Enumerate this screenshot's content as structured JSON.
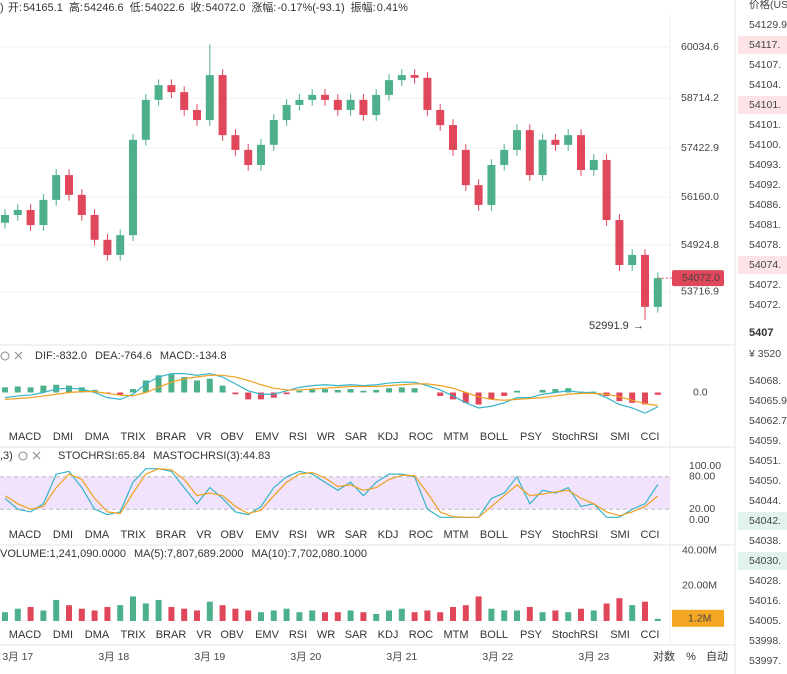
{
  "ohlc_bar": {
    "prefix": ")",
    "items": [
      {
        "label": "开:",
        "value": "54165.1"
      },
      {
        "label": "高:",
        "value": "54246.6"
      },
      {
        "label": "低:",
        "value": "54022.6"
      },
      {
        "label": "收:",
        "value": "54072.0"
      },
      {
        "label": "涨幅:",
        "value": "-0.17%(-93.1)"
      },
      {
        "label": "振幅:",
        "value": "0.41%"
      }
    ]
  },
  "chart_data": {
    "type": "candlestick",
    "open": [
      55500,
      55700,
      55830,
      55440,
      56090,
      56730,
      56220,
      55700,
      55060,
      54670,
      55180,
      57640,
      58670,
      59050,
      58870,
      58410,
      58150,
      59310,
      57760,
      57380,
      56990,
      57510,
      58150,
      58540,
      58670,
      58800,
      58670,
      58410,
      58670,
      58280,
      58800,
      59180,
      59310,
      59240,
      58410,
      58020,
      57380,
      56470,
      55960,
      56990,
      57380,
      57890,
      56730,
      57640,
      57510,
      57760,
      56860,
      57120,
      55570,
      54410,
      54670,
      53330
    ],
    "high": [
      55850,
      55980,
      55980,
      56240,
      56880,
      56880,
      56370,
      55850,
      55210,
      55330,
      57790,
      58820,
      59200,
      59200,
      59020,
      58560,
      60100,
      59460,
      57910,
      57530,
      57660,
      58300,
      58690,
      58820,
      58950,
      58950,
      58820,
      58820,
      58820,
      58950,
      59330,
      59460,
      59460,
      59390,
      58560,
      58170,
      57530,
      56620,
      57140,
      57530,
      58040,
      58040,
      57790,
      57790,
      57910,
      57910,
      57270,
      57270,
      55720,
      54820,
      54820,
      54222
    ],
    "low": [
      55350,
      55550,
      55290,
      55290,
      55940,
      56070,
      55550,
      54910,
      54520,
      54520,
      55030,
      57490,
      58520,
      58720,
      58260,
      58000,
      58000,
      57610,
      57230,
      56840,
      56840,
      57360,
      58000,
      58390,
      58520,
      58520,
      58260,
      58260,
      58130,
      58130,
      58650,
      59030,
      59090,
      58260,
      57870,
      57230,
      56320,
      55810,
      55810,
      56840,
      57230,
      56580,
      56580,
      57360,
      57360,
      56710,
      56710,
      55420,
      54260,
      54260,
      52991.9,
      53180
    ],
    "close": [
      55700,
      55830,
      55440,
      56090,
      56730,
      56220,
      55700,
      55060,
      54670,
      55180,
      57640,
      58670,
      59050,
      58870,
      58410,
      58150,
      59310,
      57760,
      57380,
      56990,
      57510,
      58150,
      58540,
      58670,
      58800,
      58670,
      58410,
      58670,
      58280,
      58800,
      59180,
      59310,
      59240,
      58410,
      58020,
      57380,
      56470,
      55960,
      56990,
      57380,
      57890,
      56730,
      57640,
      57510,
      57760,
      56860,
      57120,
      55570,
      54410,
      54670,
      53330,
      54072
    ],
    "ylim": [
      52475,
      61247
    ],
    "yticks": [
      60034.6,
      58714.2,
      57422.9,
      {
        "value": 56160,
        "label": "56160.0"
      },
      54924.8,
      53716.9
    ],
    "last_price": {
      "value": 54072,
      "label": "54072.0"
    },
    "low_marker": {
      "value": 52991.9,
      "label": "52991.9"
    },
    "up_color": "#4cb08b",
    "down_color": "#e0475b",
    "dates": [
      "3月 17",
      "3月 18",
      "3月 19",
      "3月 20",
      "3月 21",
      "3月 22",
      "3月 23"
    ],
    "date_index": [
      1,
      8.5,
      16,
      23.5,
      31,
      38.5,
      46
    ],
    "scale_buttons": [
      "对数",
      "%",
      "自动"
    ]
  },
  "tabs": [
    "MACD",
    "DMI",
    "DMA",
    "TRIX",
    "BRAR",
    "VR",
    "OBV",
    "EMV",
    "RSI",
    "WR",
    "SAR",
    "KDJ",
    "ROC",
    "MTM",
    "BOLL",
    "PSY",
    "StochRSI",
    "SMI",
    "CCI"
  ],
  "macd": {
    "header": [
      "DIF:-832.0",
      "DEA:-764.6",
      "MACD:-134.8"
    ],
    "ylim": [
      -1600,
      1600
    ],
    "yticks": [
      {
        "value": 0,
        "label": "0.0"
      }
    ],
    "hist": [
      300,
      350,
      300,
      400,
      450,
      400,
      300,
      150,
      -50,
      -150,
      200,
      700,
      1000,
      1050,
      900,
      700,
      800,
      400,
      -100,
      -400,
      -400,
      -300,
      -100,
      100,
      200,
      200,
      150,
      200,
      100,
      150,
      250,
      300,
      250,
      0,
      -200,
      -400,
      -600,
      -700,
      -400,
      -200,
      100,
      0,
      150,
      200,
      250,
      50,
      50,
      -200,
      -500,
      -600,
      -700,
      -134.8
    ],
    "dif": [
      -300,
      -200,
      -150,
      0,
      200,
      250,
      200,
      0,
      -300,
      -400,
      -100,
      500,
      900,
      1100,
      1100,
      1000,
      1100,
      900,
      500,
      100,
      -100,
      -100,
      100,
      300,
      400,
      450,
      400,
      450,
      400,
      450,
      550,
      600,
      600,
      400,
      150,
      -200,
      -600,
      -900,
      -800,
      -600,
      -300,
      -300,
      -100,
      0,
      100,
      0,
      0,
      -300,
      -700,
      -900,
      -1200,
      -832
    ],
    "dea": [
      -400,
      -350,
      -300,
      -200,
      -100,
      0,
      50,
      50,
      -50,
      -150,
      -200,
      0,
      300,
      600,
      800,
      900,
      1000,
      1000,
      900,
      700,
      450,
      250,
      150,
      150,
      200,
      250,
      300,
      350,
      350,
      350,
      400,
      450,
      500,
      500,
      400,
      250,
      0,
      -250,
      -400,
      -450,
      -400,
      -350,
      -300,
      -200,
      -100,
      -50,
      -50,
      -100,
      -250,
      -450,
      -650,
      -764.6
    ]
  },
  "stoch": {
    "prefix": ",3)",
    "header": [
      "STOCHRSI:65.84",
      "MASTOCHRSI(3):44.83"
    ],
    "ylim": [
      0,
      100
    ],
    "yticks": [
      {
        "value": 100,
        "label": "100.00"
      },
      {
        "value": 80,
        "label": "80.00"
      },
      {
        "value": 20,
        "label": "20.00"
      },
      {
        "value": 0,
        "label": "0.00"
      }
    ],
    "k": [
      40,
      20,
      15,
      30,
      85,
      90,
      60,
      20,
      10,
      15,
      70,
      95,
      95,
      90,
      60,
      30,
      60,
      40,
      15,
      10,
      25,
      60,
      80,
      90,
      85,
      70,
      55,
      70,
      45,
      70,
      85,
      85,
      80,
      20,
      5,
      5,
      5,
      5,
      40,
      50,
      80,
      30,
      55,
      50,
      60,
      25,
      30,
      5,
      5,
      20,
      30,
      65.84
    ],
    "d": [
      45,
      30,
      20,
      25,
      60,
      85,
      75,
      40,
      15,
      12,
      50,
      85,
      95,
      93,
      75,
      45,
      50,
      45,
      25,
      12,
      18,
      45,
      70,
      85,
      88,
      78,
      62,
      65,
      55,
      60,
      75,
      83,
      82,
      50,
      15,
      6,
      5,
      5,
      25,
      45,
      65,
      45,
      48,
      52,
      55,
      40,
      30,
      15,
      8,
      15,
      25,
      44.83
    ]
  },
  "volume": {
    "header": [
      "VOLUME:1,241,090.0000",
      "MA(5):7,807,689.2000",
      "MA(10):7,702,080.1000"
    ],
    "ylim": [
      0,
      41000000
    ],
    "yticks": [
      {
        "value": 40000000,
        "label": "40.00M"
      },
      {
        "value": 20000000,
        "label": "20.00M"
      }
    ],
    "current": {
      "value": 1241090,
      "label": "1.2M"
    },
    "values": [
      5000000,
      7000000,
      8000000,
      6000000,
      12000000,
      9000000,
      7000000,
      6000000,
      8000000,
      9000000,
      14000000,
      10000000,
      12000000,
      8000000,
      7000000,
      6000000,
      11000000,
      9000000,
      7000000,
      6000000,
      5000000,
      6000000,
      7000000,
      5000000,
      6000000,
      5000000,
      5000000,
      6000000,
      5000000,
      4000000,
      6000000,
      7000000,
      5000000,
      6000000,
      5000000,
      8000000,
      9000000,
      14000000,
      7000000,
      6000000,
      6000000,
      8000000,
      5000000,
      6000000,
      5000000,
      7000000,
      6000000,
      10000000,
      13000000,
      9000000,
      11000000,
      1241090
    ]
  },
  "order_book": {
    "header": "价格(US",
    "asks": [
      "54129.9",
      "54117.",
      "54107.",
      "54104.",
      "54101.",
      "54101.",
      "54100.",
      "54093.",
      "54092.",
      "54086.",
      "54081.",
      "54078.",
      "54074.",
      "54072.",
      "54072."
    ],
    "mid": "5407",
    "mid_cny": "¥ 3520",
    "bids": [
      "54068.",
      "54065.9",
      "54062.7",
      "54059.",
      "54051.",
      "54050.",
      "54044.",
      "54042.",
      "54038.",
      "54030.",
      "54028.",
      "54016.",
      "54005.",
      "53998.",
      "53997."
    ]
  }
}
